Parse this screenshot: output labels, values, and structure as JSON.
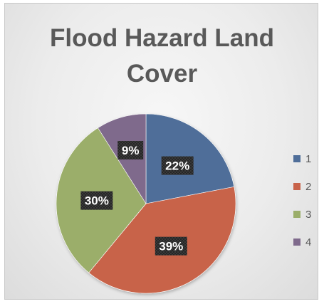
{
  "chart_data": {
    "type": "pie",
    "title": "Flood Hazard Land Cover",
    "categories": [
      "1",
      "2",
      "3",
      "4"
    ],
    "values": [
      22,
      39,
      30,
      9
    ],
    "labels": [
      "22%",
      "39%",
      "30%",
      "9%"
    ],
    "colors": [
      "#4F6E99",
      "#C8634A",
      "#9BAE6A",
      "#7F6A8C"
    ],
    "start_angle_deg": 0,
    "direction": "clockwise",
    "legend_position": "right",
    "grid": false
  }
}
